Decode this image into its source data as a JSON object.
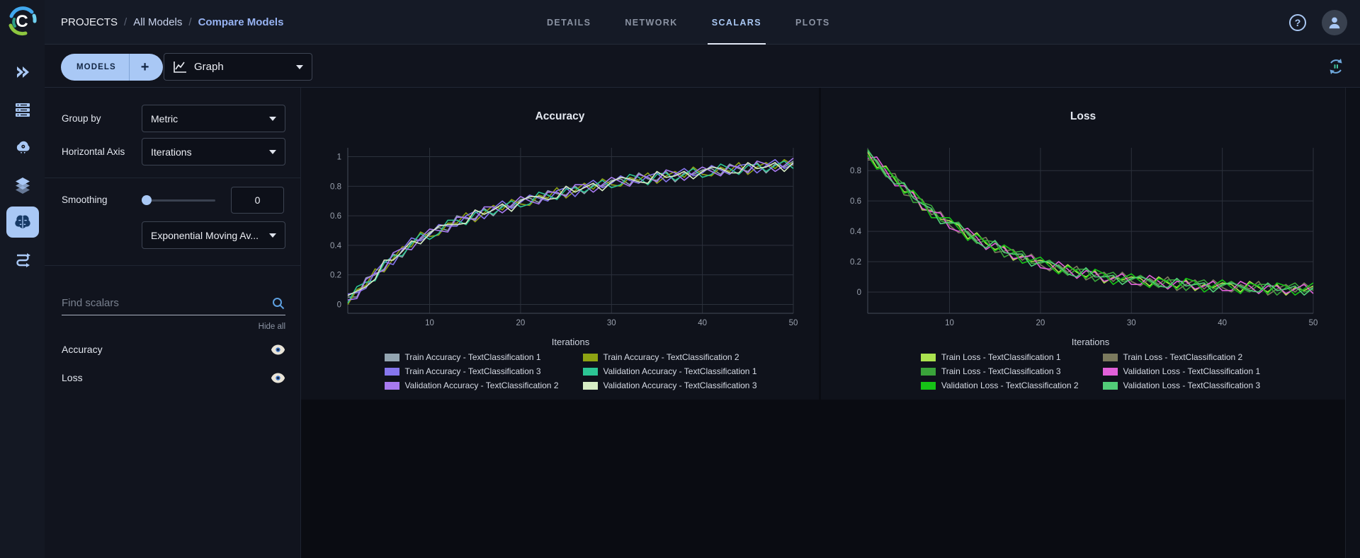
{
  "header": {
    "breadcrumb": {
      "root": "PROJECTS",
      "separator": "/",
      "parent": "All Models",
      "current": "Compare Models"
    },
    "tabs": [
      {
        "label": "DETAILS",
        "active": false
      },
      {
        "label": "NETWORK",
        "active": false
      },
      {
        "label": "SCALARS",
        "active": true
      },
      {
        "label": "PLOTS",
        "active": false
      }
    ],
    "help_label": "?"
  },
  "toolbar": {
    "models_label": "MODELS",
    "add_label": "+",
    "view_selector": {
      "value": "Graph"
    }
  },
  "sidebar": {
    "icons": [
      "projects-icon",
      "workers-queues-icon",
      "applications-icon",
      "datasets-icon",
      "models-icon",
      "pipelines-icon"
    ],
    "active": "models-icon"
  },
  "controls": {
    "group_by_label": "Group by",
    "group_by_value": "Metric",
    "horizontal_axis_label": "Horizontal Axis",
    "horizontal_axis_value": "Iterations",
    "smoothing_label": "Smoothing",
    "smoothing_value": "0",
    "smoothing_type_value": "Exponential Moving Av...",
    "search_placeholder": "Find scalars",
    "hide_all_label": "Hide all",
    "metrics": [
      {
        "name": "Accuracy"
      },
      {
        "name": "Loss"
      }
    ]
  },
  "ui_colors": {
    "accent": "#a9c8f5",
    "active_tab": "#a9c7f2",
    "panel_bg": "#11141e",
    "card_bg": "#0f121b"
  },
  "chart_data": [
    {
      "type": "line",
      "title": "Accuracy",
      "xlabel": "Iterations",
      "ylabel": "",
      "xlim": [
        1,
        50
      ],
      "ylim": [
        -0.06,
        1.06
      ],
      "x_ticks": [
        10,
        20,
        30,
        40,
        50
      ],
      "y_ticks": [
        0,
        0.2,
        0.4,
        0.6,
        0.8,
        1
      ],
      "grid": true,
      "legend_position": "bottom",
      "series": [
        {
          "name": "Train Accuracy - TextClassification 1",
          "color": "#93a5b1",
          "values": [
            0.05,
            0.05,
            0.18,
            0.2,
            0.24,
            0.34,
            0.32,
            0.42,
            0.44,
            0.49,
            0.52,
            0.5,
            0.6,
            0.58,
            0.58,
            0.65,
            0.6,
            0.67,
            0.66,
            0.71,
            0.72,
            0.69,
            0.77,
            0.75,
            0.74,
            0.8,
            0.75,
            0.81,
            0.8,
            0.84,
            0.85,
            0.81,
            0.89,
            0.85,
            0.84,
            0.9,
            0.83,
            0.89,
            0.88,
            0.91,
            0.92,
            0.88,
            0.95,
            0.92,
            0.9,
            0.96,
            0.89,
            0.95,
            0.93,
            0.97
          ]
        },
        {
          "name": "Train Accuracy - TextClassification 2",
          "color": "#8ea313",
          "values": [
            0.0,
            0.1,
            0.13,
            0.24,
            0.22,
            0.31,
            0.39,
            0.39,
            0.49,
            0.46,
            0.47,
            0.55,
            0.55,
            0.62,
            0.56,
            0.62,
            0.67,
            0.64,
            0.71,
            0.68,
            0.67,
            0.74,
            0.72,
            0.79,
            0.72,
            0.77,
            0.82,
            0.78,
            0.85,
            0.81,
            0.8,
            0.86,
            0.84,
            0.89,
            0.82,
            0.87,
            0.9,
            0.86,
            0.93,
            0.88,
            0.87,
            0.93,
            0.9,
            0.96,
            0.88,
            0.93,
            0.96,
            0.92,
            0.98,
            0.94
          ]
        },
        {
          "name": "Train Accuracy - TextClassification 3",
          "color": "#8676ee",
          "values": [
            0.07,
            0.08,
            0.11,
            0.22,
            0.29,
            0.27,
            0.37,
            0.45,
            0.43,
            0.47,
            0.54,
            0.53,
            0.53,
            0.6,
            0.63,
            0.58,
            0.65,
            0.7,
            0.65,
            0.69,
            0.74,
            0.72,
            0.7,
            0.77,
            0.79,
            0.73,
            0.8,
            0.84,
            0.79,
            0.82,
            0.87,
            0.84,
            0.82,
            0.87,
            0.89,
            0.83,
            0.88,
            0.92,
            0.87,
            0.89,
            0.94,
            0.91,
            0.88,
            0.94,
            0.95,
            0.89,
            0.94,
            0.98,
            0.92,
            0.95
          ]
        },
        {
          "name": "Validation Accuracy - TextClassification 1",
          "color": "#2cc594",
          "values": [
            0.01,
            0.12,
            0.15,
            0.16,
            0.28,
            0.33,
            0.33,
            0.41,
            0.48,
            0.44,
            0.48,
            0.57,
            0.57,
            0.54,
            0.62,
            0.64,
            0.61,
            0.66,
            0.7,
            0.66,
            0.68,
            0.76,
            0.74,
            0.71,
            0.78,
            0.79,
            0.76,
            0.8,
            0.84,
            0.79,
            0.81,
            0.88,
            0.86,
            0.81,
            0.88,
            0.89,
            0.84,
            0.88,
            0.92,
            0.86,
            0.88,
            0.95,
            0.92,
            0.88,
            0.94,
            0.95,
            0.9,
            0.94,
            0.97,
            0.92
          ]
        },
        {
          "name": "Validation Accuracy - TextClassification 2",
          "color": "#a87af0",
          "values": [
            0.03,
            0.04,
            0.17,
            0.21,
            0.23,
            0.35,
            0.38,
            0.37,
            0.45,
            0.51,
            0.5,
            0.49,
            0.59,
            0.59,
            0.57,
            0.66,
            0.66,
            0.62,
            0.67,
            0.73,
            0.7,
            0.68,
            0.76,
            0.76,
            0.73,
            0.81,
            0.81,
            0.76,
            0.81,
            0.86,
            0.83,
            0.8,
            0.88,
            0.86,
            0.83,
            0.91,
            0.89,
            0.84,
            0.89,
            0.93,
            0.9,
            0.87,
            0.94,
            0.93,
            0.89,
            0.97,
            0.95,
            0.9,
            0.94,
            0.99
          ]
        },
        {
          "name": "Validation Accuracy - TextClassification 3",
          "color": "#d7edc5",
          "values": [
            0.06,
            0.09,
            0.12,
            0.17,
            0.3,
            0.3,
            0.36,
            0.43,
            0.41,
            0.48,
            0.53,
            0.54,
            0.54,
            0.55,
            0.64,
            0.61,
            0.64,
            0.68,
            0.63,
            0.7,
            0.73,
            0.73,
            0.71,
            0.72,
            0.8,
            0.76,
            0.79,
            0.82,
            0.77,
            0.83,
            0.86,
            0.85,
            0.83,
            0.82,
            0.9,
            0.86,
            0.87,
            0.9,
            0.85,
            0.9,
            0.93,
            0.92,
            0.89,
            0.89,
            0.96,
            0.92,
            0.93,
            0.96,
            0.9,
            0.96
          ]
        }
      ]
    },
    {
      "type": "line",
      "title": "Loss",
      "xlabel": "Iterations",
      "ylabel": "",
      "xlim": [
        1,
        50
      ],
      "ylim": [
        -0.14,
        0.95
      ],
      "x_ticks": [
        10,
        20,
        30,
        40,
        50
      ],
      "y_ticks": [
        0,
        0.2,
        0.4,
        0.6,
        0.8
      ],
      "grid": true,
      "legend_position": "bottom",
      "series": [
        {
          "name": "Train Loss - TextClassification 1",
          "color": "#abe34f",
          "values": [
            0.92,
            0.82,
            0.83,
            0.74,
            0.66,
            0.66,
            0.54,
            0.54,
            0.48,
            0.47,
            0.44,
            0.35,
            0.39,
            0.32,
            0.28,
            0.3,
            0.21,
            0.24,
            0.2,
            0.21,
            0.19,
            0.13,
            0.18,
            0.13,
            0.1,
            0.14,
            0.06,
            0.1,
            0.08,
            0.1,
            0.09,
            0.04,
            0.1,
            0.06,
            0.03,
            0.08,
            0.01,
            0.05,
            0.03,
            0.06,
            0.05,
            0.0,
            0.07,
            0.03,
            0.0,
            0.05,
            -0.02,
            0.03,
            0.01,
            0.04
          ]
        },
        {
          "name": "Train Loss - TextClassification 2",
          "color": "#7b7a5e",
          "values": [
            0.87,
            0.87,
            0.78,
            0.78,
            0.64,
            0.63,
            0.61,
            0.51,
            0.53,
            0.44,
            0.39,
            0.4,
            0.34,
            0.36,
            0.26,
            0.27,
            0.28,
            0.21,
            0.25,
            0.18,
            0.14,
            0.18,
            0.13,
            0.17,
            0.08,
            0.11,
            0.13,
            0.07,
            0.13,
            0.07,
            0.04,
            0.09,
            0.05,
            0.1,
            0.01,
            0.05,
            0.08,
            0.02,
            0.08,
            0.03,
            0.0,
            0.05,
            0.02,
            0.07,
            -0.02,
            0.02,
            0.05,
            0.0,
            0.06,
            0.01
          ]
        },
        {
          "name": "Train Loss - TextClassification 3",
          "color": "#3aa33a",
          "values": [
            0.94,
            0.85,
            0.76,
            0.76,
            0.71,
            0.59,
            0.59,
            0.57,
            0.47,
            0.45,
            0.46,
            0.38,
            0.32,
            0.34,
            0.33,
            0.23,
            0.26,
            0.27,
            0.19,
            0.19,
            0.21,
            0.16,
            0.11,
            0.15,
            0.15,
            0.07,
            0.11,
            0.13,
            0.07,
            0.08,
            0.11,
            0.07,
            0.03,
            0.08,
            0.08,
            0.01,
            0.06,
            0.08,
            0.02,
            0.04,
            0.07,
            0.03,
            0.0,
            0.05,
            0.05,
            -0.02,
            0.03,
            0.06,
            0.0,
            0.02
          ]
        },
        {
          "name": "Validation Loss - TextClassification 1",
          "color": "#e160d9",
          "values": [
            0.88,
            0.89,
            0.8,
            0.7,
            0.7,
            0.65,
            0.55,
            0.53,
            0.52,
            0.42,
            0.4,
            0.42,
            0.36,
            0.28,
            0.32,
            0.29,
            0.22,
            0.23,
            0.24,
            0.16,
            0.15,
            0.2,
            0.15,
            0.09,
            0.14,
            0.13,
            0.07,
            0.09,
            0.12,
            0.05,
            0.05,
            0.11,
            0.07,
            0.02,
            0.07,
            0.07,
            0.02,
            0.04,
            0.07,
            0.01,
            0.01,
            0.07,
            0.04,
            -0.01,
            0.04,
            0.04,
            -0.01,
            0.02,
            0.05,
            -0.01
          ]
        },
        {
          "name": "Validation Loss - TextClassification 2",
          "color": "#16c316",
          "values": [
            0.9,
            0.81,
            0.82,
            0.75,
            0.65,
            0.67,
            0.6,
            0.49,
            0.49,
            0.49,
            0.42,
            0.34,
            0.38,
            0.33,
            0.27,
            0.31,
            0.27,
            0.19,
            0.21,
            0.23,
            0.17,
            0.12,
            0.17,
            0.14,
            0.09,
            0.15,
            0.12,
            0.05,
            0.09,
            0.12,
            0.07,
            0.03,
            0.09,
            0.07,
            0.02,
            0.09,
            0.07,
            0.0,
            0.04,
            0.08,
            0.03,
            -0.01,
            0.06,
            0.04,
            -0.01,
            0.06,
            0.04,
            -0.02,
            0.02,
            0.06
          ]
        },
        {
          "name": "Validation Loss - TextClassification 3",
          "color": "#52cd78",
          "values": [
            0.93,
            0.86,
            0.77,
            0.71,
            0.72,
            0.62,
            0.58,
            0.55,
            0.45,
            0.46,
            0.45,
            0.39,
            0.33,
            0.29,
            0.34,
            0.26,
            0.25,
            0.25,
            0.17,
            0.2,
            0.2,
            0.17,
            0.12,
            0.1,
            0.16,
            0.1,
            0.1,
            0.11,
            0.05,
            0.09,
            0.1,
            0.08,
            0.04,
            0.03,
            0.09,
            0.04,
            0.05,
            0.06,
            0.0,
            0.05,
            0.06,
            0.04,
            0.01,
            0.0,
            0.06,
            0.01,
            0.02,
            0.04,
            -0.02,
            0.03
          ]
        }
      ]
    }
  ]
}
